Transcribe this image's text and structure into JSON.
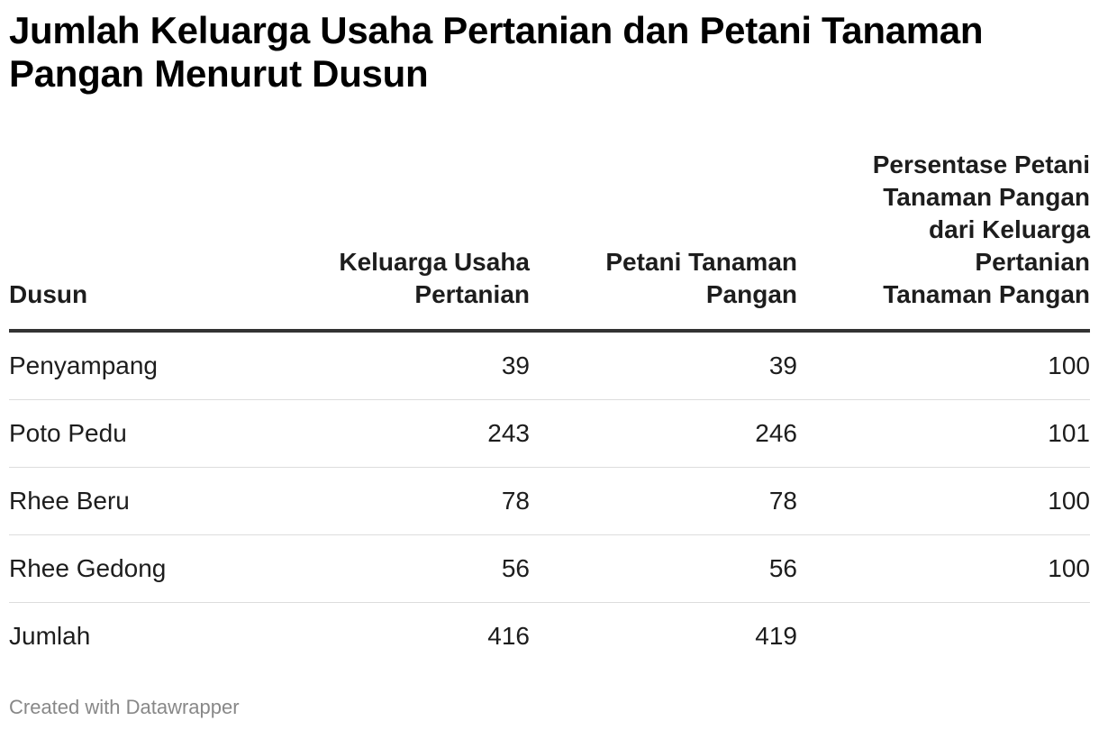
{
  "chart_data": {
    "type": "table",
    "title_lines": [
      "Jumlah Keluarga Usaha Pertanian dan Petani Tanaman",
      "Pangan Menurut Dusun"
    ],
    "columns": [
      {
        "header_lines": [
          "Dusun"
        ]
      },
      {
        "header_lines": [
          "Keluarga Usaha",
          "Pertanian"
        ]
      },
      {
        "header_lines": [
          "Petani Tanaman",
          "Pangan"
        ]
      },
      {
        "header_lines": [
          "Persentase Petani",
          "Tanaman Pangan",
          "dari Keluarga",
          "Pertanian",
          "Tanaman Pangan"
        ]
      }
    ],
    "rows": [
      [
        "Penyampang",
        "39",
        "39",
        "100"
      ],
      [
        "Poto Pedu",
        "243",
        "246",
        "101"
      ],
      [
        "Rhee Beru",
        "78",
        "78",
        "100"
      ],
      [
        "Rhee Gedong",
        "56",
        "56",
        "100"
      ],
      [
        "Jumlah",
        "416",
        "419",
        ""
      ]
    ]
  },
  "footer": {
    "credit": "Created with Datawrapper"
  }
}
